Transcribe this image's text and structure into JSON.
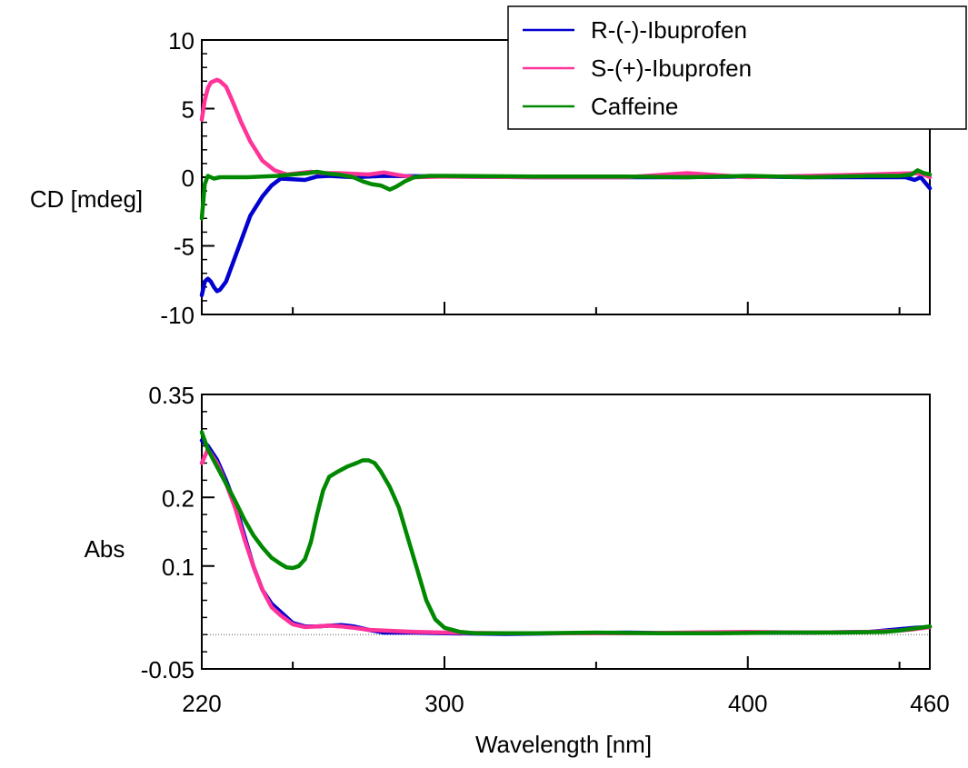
{
  "chart_data": [
    {
      "type": "line",
      "ylabel": "CD [mdeg]",
      "xlim": [
        220,
        460
      ],
      "ylim": [
        -10,
        10
      ],
      "x_ticks_major": [
        300,
        400
      ],
      "x_ticks_minor": [
        250,
        350,
        450
      ],
      "y_ticks_labeled": [
        {
          "value": 10,
          "label": "10"
        },
        {
          "value": 5,
          "label": "5"
        },
        {
          "value": 0,
          "label": "0"
        },
        {
          "value": -5,
          "label": "-5"
        },
        {
          "value": -10,
          "label": "-10"
        }
      ],
      "series": [
        {
          "name": "R-(-)-Ibuprofen",
          "color": "#0000d0",
          "points": [
            [
              220,
              -8.6
            ],
            [
              221,
              -7.6
            ],
            [
              222,
              -7.4
            ],
            [
              223,
              -7.6
            ],
            [
              224,
              -8.0
            ],
            [
              225,
              -8.3
            ],
            [
              226,
              -8.2
            ],
            [
              228,
              -7.6
            ],
            [
              230,
              -6.4
            ],
            [
              233,
              -4.6
            ],
            [
              236,
              -2.8
            ],
            [
              240,
              -1.4
            ],
            [
              243,
              -0.6
            ],
            [
              246,
              -0.1
            ],
            [
              250,
              -0.15
            ],
            [
              254,
              -0.2
            ],
            [
              258,
              0.05
            ],
            [
              262,
              0.1
            ],
            [
              270,
              0.0
            ],
            [
              280,
              0.1
            ],
            [
              300,
              0.05
            ],
            [
              330,
              0.0
            ],
            [
              360,
              0.0
            ],
            [
              380,
              0.0
            ],
            [
              400,
              0.05
            ],
            [
              420,
              0.0
            ],
            [
              440,
              0.0
            ],
            [
              450,
              0.0
            ],
            [
              452,
              0.0
            ],
            [
              455,
              -0.2
            ],
            [
              457,
              0.0
            ],
            [
              460,
              -0.8
            ]
          ]
        },
        {
          "name": "S-(+)-Ibuprofen",
          "color": "#ff3399",
          "points": [
            [
              220,
              4.2
            ],
            [
              221,
              5.6
            ],
            [
              222,
              6.5
            ],
            [
              223,
              6.9
            ],
            [
              224,
              7.0
            ],
            [
              225,
              7.1
            ],
            [
              226,
              7.0
            ],
            [
              228,
              6.6
            ],
            [
              230,
              5.6
            ],
            [
              233,
              4.0
            ],
            [
              236,
              2.6
            ],
            [
              240,
              1.2
            ],
            [
              244,
              0.5
            ],
            [
              248,
              0.2
            ],
            [
              252,
              0.3
            ],
            [
              256,
              0.4
            ],
            [
              260,
              0.3
            ],
            [
              265,
              0.3
            ],
            [
              270,
              0.25
            ],
            [
              275,
              0.2
            ],
            [
              280,
              0.35
            ],
            [
              285,
              0.15
            ],
            [
              290,
              0.0
            ],
            [
              300,
              0.05
            ],
            [
              330,
              0.0
            ],
            [
              360,
              0.0
            ],
            [
              380,
              0.3
            ],
            [
              400,
              0.0
            ],
            [
              420,
              0.1
            ],
            [
              440,
              0.2
            ],
            [
              455,
              0.3
            ],
            [
              458,
              0.2
            ],
            [
              460,
              0.0
            ]
          ]
        },
        {
          "name": "Caffeine",
          "color": "#008800",
          "points": [
            [
              220,
              -3.0
            ],
            [
              221,
              -0.5
            ],
            [
              222,
              0.1
            ],
            [
              224,
              -0.1
            ],
            [
              226,
              0.0
            ],
            [
              230,
              0.0
            ],
            [
              235,
              0.0
            ],
            [
              240,
              0.05
            ],
            [
              245,
              0.1
            ],
            [
              250,
              0.2
            ],
            [
              255,
              0.3
            ],
            [
              258,
              0.4
            ],
            [
              262,
              0.25
            ],
            [
              265,
              0.2
            ],
            [
              270,
              0.0
            ],
            [
              273,
              -0.3
            ],
            [
              276,
              -0.5
            ],
            [
              279,
              -0.6
            ],
            [
              282,
              -0.9
            ],
            [
              284,
              -0.7
            ],
            [
              287,
              -0.3
            ],
            [
              290,
              0.0
            ],
            [
              295,
              0.1
            ],
            [
              300,
              0.1
            ],
            [
              330,
              0.05
            ],
            [
              360,
              0.05
            ],
            [
              380,
              0.0
            ],
            [
              400,
              0.1
            ],
            [
              420,
              0.0
            ],
            [
              440,
              0.1
            ],
            [
              450,
              0.1
            ],
            [
              454,
              0.2
            ],
            [
              456,
              0.5
            ],
            [
              458,
              0.3
            ],
            [
              460,
              0.2
            ]
          ]
        }
      ]
    },
    {
      "type": "line",
      "xlabel": "Wavelength [nm]",
      "ylabel": "Abs",
      "xlim": [
        220,
        460
      ],
      "ylim": [
        -0.05,
        0.35
      ],
      "baseline": 0,
      "x_ticks_major": [
        300,
        400
      ],
      "x_ticks_minor": [
        250,
        350,
        450
      ],
      "x_tick_labels": [
        {
          "value": 220,
          "label": "220"
        },
        {
          "value": 300,
          "label": "300"
        },
        {
          "value": 400,
          "label": "400"
        },
        {
          "value": 460,
          "label": "460"
        }
      ],
      "y_ticks_labeled": [
        {
          "value": 0.35,
          "label": "0.35"
        },
        {
          "value": 0.2,
          "label": "0.2"
        },
        {
          "value": 0.1,
          "label": "0.1"
        },
        {
          "value": -0.05,
          "label": "-0.05"
        }
      ],
      "series": [
        {
          "name": "R-(-)-Ibuprofen",
          "color": "#0000d0",
          "points": [
            [
              220,
              0.283
            ],
            [
              222,
              0.275
            ],
            [
              225,
              0.255
            ],
            [
              228,
              0.225
            ],
            [
              231,
              0.19
            ],
            [
              234,
              0.145
            ],
            [
              237,
              0.1
            ],
            [
              240,
              0.065
            ],
            [
              243,
              0.045
            ],
            [
              246,
              0.033
            ],
            [
              250,
              0.017
            ],
            [
              254,
              0.012
            ],
            [
              258,
              0.012
            ],
            [
              262,
              0.013
            ],
            [
              266,
              0.014
            ],
            [
              270,
              0.012
            ],
            [
              275,
              0.007
            ],
            [
              280,
              0.003
            ],
            [
              290,
              0.003
            ],
            [
              300,
              0.002
            ],
            [
              320,
              0.001
            ],
            [
              340,
              0.002
            ],
            [
              360,
              0.003
            ],
            [
              380,
              0.002
            ],
            [
              400,
              0.003
            ],
            [
              420,
              0.003
            ],
            [
              440,
              0.004
            ],
            [
              450,
              0.008
            ],
            [
              455,
              0.01
            ],
            [
              460,
              0.011
            ]
          ]
        },
        {
          "name": "S-(+)-Ibuprofen",
          "color": "#ff3399",
          "points": [
            [
              220,
              0.25
            ],
            [
              222,
              0.27
            ],
            [
              225,
              0.25
            ],
            [
              228,
              0.22
            ],
            [
              231,
              0.185
            ],
            [
              234,
              0.14
            ],
            [
              237,
              0.1
            ],
            [
              240,
              0.065
            ],
            [
              243,
              0.04
            ],
            [
              246,
              0.028
            ],
            [
              250,
              0.015
            ],
            [
              254,
              0.011
            ],
            [
              258,
              0.012
            ],
            [
              262,
              0.013
            ],
            [
              266,
              0.012
            ],
            [
              270,
              0.01
            ],
            [
              275,
              0.007
            ],
            [
              280,
              0.006
            ],
            [
              290,
              0.004
            ],
            [
              300,
              0.003
            ],
            [
              320,
              0.002
            ],
            [
              340,
              0.002
            ],
            [
              360,
              0.002
            ],
            [
              380,
              0.003
            ],
            [
              400,
              0.004
            ],
            [
              420,
              0.003
            ],
            [
              440,
              0.004
            ],
            [
              450,
              0.006
            ],
            [
              455,
              0.008
            ],
            [
              460,
              0.011
            ]
          ]
        },
        {
          "name": "Caffeine",
          "color": "#008800",
          "points": [
            [
              220,
              0.295
            ],
            [
              222,
              0.27
            ],
            [
              225,
              0.245
            ],
            [
              228,
              0.22
            ],
            [
              231,
              0.195
            ],
            [
              234,
              0.168
            ],
            [
              237,
              0.145
            ],
            [
              240,
              0.127
            ],
            [
              243,
              0.112
            ],
            [
              246,
              0.103
            ],
            [
              248,
              0.098
            ],
            [
              250,
              0.097
            ],
            [
              252,
              0.1
            ],
            [
              254,
              0.11
            ],
            [
              256,
              0.135
            ],
            [
              258,
              0.175
            ],
            [
              260,
              0.21
            ],
            [
              262,
              0.23
            ],
            [
              265,
              0.238
            ],
            [
              268,
              0.245
            ],
            [
              271,
              0.25
            ],
            [
              273,
              0.254
            ],
            [
              275,
              0.254
            ],
            [
              277,
              0.25
            ],
            [
              279,
              0.238
            ],
            [
              282,
              0.215
            ],
            [
              285,
              0.185
            ],
            [
              288,
              0.14
            ],
            [
              291,
              0.095
            ],
            [
              294,
              0.05
            ],
            [
              297,
              0.022
            ],
            [
              300,
              0.01
            ],
            [
              305,
              0.004
            ],
            [
              310,
              0.002
            ],
            [
              330,
              0.002
            ],
            [
              350,
              0.003
            ],
            [
              370,
              0.002
            ],
            [
              390,
              0.002
            ],
            [
              410,
              0.003
            ],
            [
              430,
              0.003
            ],
            [
              445,
              0.004
            ],
            [
              450,
              0.006
            ],
            [
              455,
              0.009
            ],
            [
              460,
              0.012
            ]
          ]
        }
      ]
    }
  ],
  "legend": {
    "position": "top-right",
    "items": [
      {
        "label": "R-(-)-Ibuprofen",
        "color": "#0000d0"
      },
      {
        "label": "S-(+)-Ibuprofen",
        "color": "#ff3399"
      },
      {
        "label": "Caffeine",
        "color": "#008800"
      }
    ]
  }
}
